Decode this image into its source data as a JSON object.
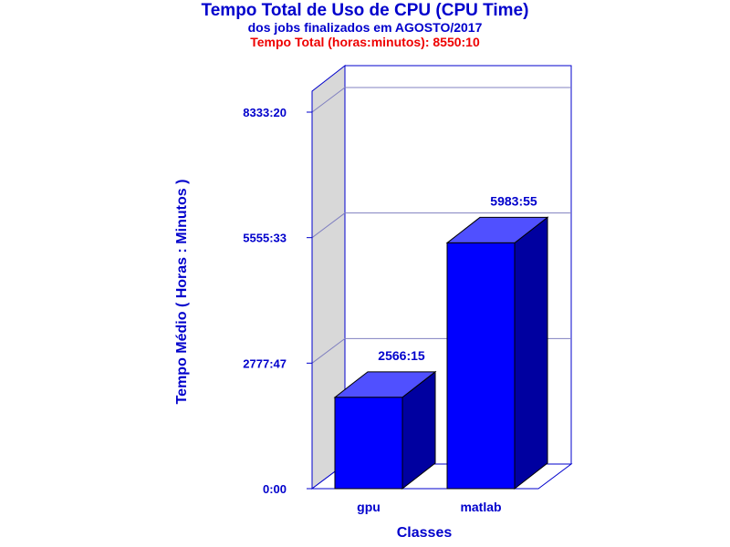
{
  "chart_data": {
    "type": "bar",
    "title": "Tempo Total de Uso de CPU (CPU Time)",
    "subtitle": "dos jobs finalizados em AGOSTO/2017",
    "total_label": "Tempo Total (horas:minutos): 8550:10",
    "xlabel": "Classes",
    "ylabel": "Tempo Médio ( Horas : Minutos )",
    "categories": [
      "gpu",
      "matlab"
    ],
    "values": [
      2566.25,
      5983.9167
    ],
    "data_labels": [
      "2566:15",
      "5983:55"
    ],
    "y_ticks": [
      {
        "value": 0,
        "label": "0:00"
      },
      {
        "value": 2777.7833,
        "label": "2777:47"
      },
      {
        "value": 5555.55,
        "label": "5555:33"
      },
      {
        "value": 8333.3333,
        "label": "8333:20"
      }
    ],
    "ylim": [
      0,
      8333.3333
    ],
    "grid": true,
    "colors": {
      "title": "#0000cc",
      "total": "#ee0000",
      "frame": "#0000cc",
      "gridline": "#8080c0",
      "back_wall": "#ffffff",
      "side_wall": "#d8d8d8",
      "bar_front": "#0000ff",
      "bar_top": "#5050ff",
      "bar_side": "#0000a0",
      "label": "#0000cc"
    }
  }
}
